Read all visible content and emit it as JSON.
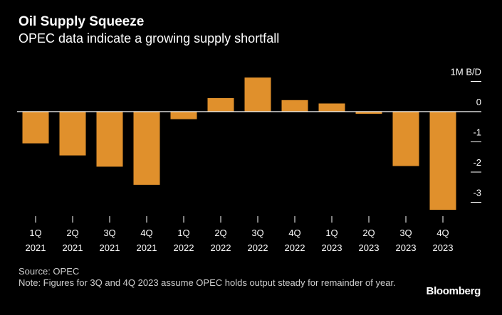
{
  "title": "Oil Supply Squeeze",
  "subtitle": "OPEC data indicate a growing supply shortfall",
  "source": "Source: OPEC",
  "note": "Note: Figures for 3Q and 4Q 2023 assume OPEC holds output steady for remainder of year.",
  "brand": "Bloomberg",
  "colors": {
    "background": "#000000",
    "bar": "#E0902C",
    "axis": "#FFFFFF",
    "text": "#FFFFFF",
    "muted": "#CFCFCF"
  },
  "chart_data": {
    "type": "bar",
    "title": "Oil Supply Squeeze",
    "subtitle": "OPEC data indicate a growing supply shortfall",
    "unit_label": "1M B/D",
    "categories": [
      [
        "1Q",
        "2021"
      ],
      [
        "2Q",
        "2021"
      ],
      [
        "3Q",
        "2021"
      ],
      [
        "4Q",
        "2021"
      ],
      [
        "1Q",
        "2022"
      ],
      [
        "2Q",
        "2022"
      ],
      [
        "3Q",
        "2022"
      ],
      [
        "4Q",
        "2022"
      ],
      [
        "1Q",
        "2023"
      ],
      [
        "2Q",
        "2023"
      ],
      [
        "3Q",
        "2023"
      ],
      [
        "4Q",
        "2023"
      ]
    ],
    "values": [
      -1.05,
      -1.45,
      -1.82,
      -2.42,
      -0.25,
      0.45,
      1.13,
      0.38,
      0.27,
      -0.07,
      -1.8,
      -3.25
    ],
    "yticks": [
      1,
      0,
      -1,
      -2,
      -3
    ],
    "ytick_labels": [
      "1M B/D",
      "0",
      "-1",
      "-2",
      "-3"
    ],
    "ylim": [
      -3.35,
      1.0
    ],
    "grid": false,
    "xlabel": "",
    "ylabel": ""
  }
}
